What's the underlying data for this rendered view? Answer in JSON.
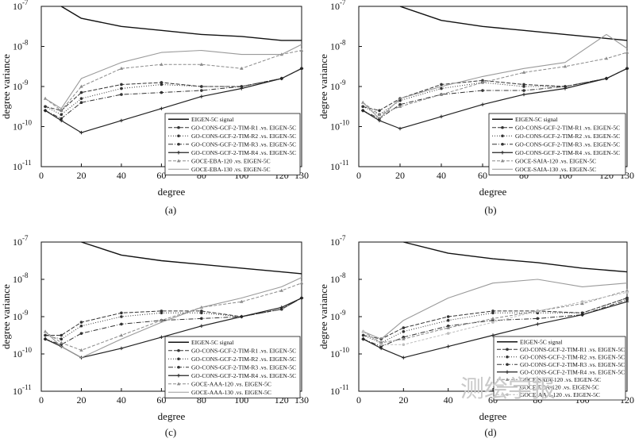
{
  "chart_data": [
    {
      "type": "line",
      "panel": "(a)",
      "xlabel": "degree",
      "ylabel": "degree variance",
      "xlim": [
        0,
        130
      ],
      "ylim_log10": [
        -11,
        -7
      ],
      "x_ticks": [
        "0",
        "20",
        "40",
        "60",
        "80",
        "100",
        "120",
        "130"
      ],
      "y_ticks": [
        "10^-11",
        "10^-10",
        "10^-9",
        "10^-8",
        "10^-7"
      ],
      "legend": [
        "EIGEN-5C signal",
        "GO-CONS-GCF-2-TIM-R1 .vs. EIGEN-5C",
        "GO-CONS-GCF-2-TIM-R2 .vs. EIGEN-5C",
        "GO-CONS-GCF-2-TIM-R3 .vs. EIGEN-5C",
        "GO-CONS-GCF-2-TIM-R4 .vs. EIGEN-5C",
        "GOCE-EBA-120 .vs. EIGEN-5C",
        "GOCE-EBA-130 .vs. EIGEN-5C"
      ],
      "series": [
        {
          "name": "EIGEN-5C signal",
          "x": [
            10,
            20,
            40,
            60,
            80,
            100,
            120,
            130
          ],
          "log10_y": [
            -7,
            -7.3,
            -7.5,
            -7.6,
            -7.7,
            -7.75,
            -7.85,
            -7.85
          ]
        },
        {
          "name": "GO-CONS-GCF-2-TIM-R1 .vs. EIGEN-5C",
          "x": [
            2,
            10,
            20,
            40,
            60,
            80,
            100,
            120,
            130
          ],
          "log10_y": [
            -9.5,
            -9.6,
            -9.15,
            -8.95,
            -8.9,
            -9.0,
            -9.0,
            -8.8,
            -8.55
          ]
        },
        {
          "name": "GO-CONS-GCF-2-TIM-R2 .vs. EIGEN-5C",
          "x": [
            2,
            10,
            20,
            40,
            60,
            80,
            100,
            120,
            130
          ],
          "log10_y": [
            -9.5,
            -9.7,
            -9.3,
            -9.05,
            -8.95,
            -9.0,
            -9.0,
            -8.8,
            -8.55
          ]
        },
        {
          "name": "GO-CONS-GCF-2-TIM-R3 .vs. EIGEN-5C",
          "x": [
            2,
            10,
            20,
            40,
            60,
            80,
            100,
            120,
            130
          ],
          "log10_y": [
            -9.6,
            -9.8,
            -9.4,
            -9.2,
            -9.15,
            -9.1,
            -9.0,
            -8.8,
            -8.55
          ]
        },
        {
          "name": "GO-CONS-GCF-2-TIM-R4 .vs. EIGEN-5C",
          "x": [
            2,
            10,
            20,
            40,
            60,
            80,
            100,
            120,
            130
          ],
          "log10_y": [
            -9.6,
            -9.85,
            -10.15,
            -9.85,
            -9.55,
            -9.25,
            -9.05,
            -8.8,
            -8.55
          ]
        },
        {
          "name": "GOCE-EBA-120 .vs. EIGEN-5C",
          "x": [
            2,
            10,
            20,
            40,
            60,
            80,
            100,
            120,
            130
          ],
          "log10_y": [
            -9.3,
            -9.6,
            -9.0,
            -8.55,
            -8.45,
            -8.45,
            -8.55,
            -8.2,
            -8.1
          ]
        },
        {
          "name": "GOCE-EBA-130 .vs. EIGEN-5C",
          "x": [
            2,
            10,
            20,
            40,
            60,
            80,
            100,
            120,
            130
          ],
          "log10_y": [
            -9.3,
            -9.55,
            -8.8,
            -8.4,
            -8.15,
            -8.1,
            -8.2,
            -8.2,
            -7.95
          ]
        }
      ]
    },
    {
      "type": "line",
      "panel": "(b)",
      "xlabel": "degree",
      "ylabel": "degree variance",
      "xlim": [
        0,
        130
      ],
      "ylim_log10": [
        -11,
        -7
      ],
      "x_ticks": [
        "0",
        "20",
        "40",
        "60",
        "80",
        "100",
        "120",
        "130"
      ],
      "y_ticks": [
        "10^-11",
        "10^-10",
        "10^-9",
        "10^-8",
        "10^-7"
      ],
      "legend": [
        "EIGEN-5C signal",
        "GO-CONS-GCF-2-TIM-R1 .vs. EIGEN-5C",
        "GO-CONS-GCF-2-TIM-R2 .vs. EIGEN-5C",
        "GO-CONS-GCF-2-TIM-R3 .vs. EIGEN-5C",
        "GO-CONS-GCF-2-TIM-R4 .vs. EIGEN-5C",
        "GOCE-SAIA-120 .vs. EIGEN-5C",
        "GOCE-SAIA-130 .vs. EIGEN-5C"
      ],
      "series": [
        {
          "name": "EIGEN-5C signal",
          "x": [
            20,
            40,
            60,
            80,
            100,
            120,
            130
          ],
          "log10_y": [
            -7,
            -7.35,
            -7.5,
            -7.6,
            -7.7,
            -7.8,
            -7.85
          ]
        },
        {
          "name": "GO-CONS-GCF-2-TIM-R1 .vs. EIGEN-5C",
          "x": [
            2,
            10,
            20,
            40,
            60,
            80,
            100,
            120,
            130
          ],
          "log10_y": [
            -9.5,
            -9.6,
            -9.3,
            -8.95,
            -8.85,
            -8.95,
            -9.0,
            -8.8,
            -8.55
          ]
        },
        {
          "name": "GO-CONS-GCF-2-TIM-R2 .vs. EIGEN-5C",
          "x": [
            2,
            10,
            20,
            40,
            60,
            80,
            100,
            120,
            130
          ],
          "log10_y": [
            -9.5,
            -9.7,
            -9.35,
            -9.05,
            -8.9,
            -9.0,
            -9.0,
            -8.8,
            -8.55
          ]
        },
        {
          "name": "GO-CONS-GCF-2-TIM-R3 .vs. EIGEN-5C",
          "x": [
            2,
            10,
            20,
            40,
            60,
            80,
            100,
            120,
            130
          ],
          "log10_y": [
            -9.6,
            -9.8,
            -9.45,
            -9.2,
            -9.1,
            -9.1,
            -9.0,
            -8.8,
            -8.55
          ]
        },
        {
          "name": "GO-CONS-GCF-2-TIM-R4 .vs. EIGEN-5C",
          "x": [
            2,
            10,
            20,
            40,
            60,
            80,
            100,
            120,
            130
          ],
          "log10_y": [
            -9.6,
            -9.85,
            -10.05,
            -9.75,
            -9.45,
            -9.2,
            -9.05,
            -8.8,
            -8.55
          ]
        },
        {
          "name": "GOCE-SAIA-120 .vs. EIGEN-5C",
          "x": [
            2,
            10,
            20,
            40,
            60,
            80,
            100,
            120,
            130
          ],
          "log10_y": [
            -9.4,
            -9.7,
            -9.5,
            -9.2,
            -8.9,
            -8.65,
            -8.5,
            -8.3,
            -8.15
          ]
        },
        {
          "name": "GOCE-SAIA-130 .vs. EIGEN-5C",
          "x": [
            2,
            10,
            20,
            40,
            60,
            80,
            100,
            120,
            130
          ],
          "log10_y": [
            -9.4,
            -9.8,
            -9.3,
            -9.0,
            -8.75,
            -8.55,
            -8.4,
            -7.7,
            -8.05
          ]
        }
      ]
    },
    {
      "type": "line",
      "panel": "(c)",
      "xlabel": "degree",
      "ylabel": "degree variance",
      "xlim": [
        0,
        130
      ],
      "ylim_log10": [
        -11,
        -7
      ],
      "x_ticks": [
        "0",
        "20",
        "40",
        "60",
        "80",
        "100",
        "120",
        "130"
      ],
      "y_ticks": [
        "10^-11",
        "10^-10",
        "10^-9",
        "10^-8",
        "10^-7"
      ],
      "legend": [
        "EIGEN-5C signal",
        "GO-CONS-GCF-2-TIM-R1 .vs. EIGEN-5C",
        "GO-CONS-GCF-2-TIM-R2 .vs. EIGEN-5C",
        "GO-CONS-GCF-2-TIM-R3 .vs. EIGEN-5C",
        "GO-CONS-GCF-2-TIM-R4 .vs. EIGEN-5C",
        "GOCE-AAA-120 .vs. EIGEN-5C",
        "GOCE-AAA-130 .vs. EIGEN-5C"
      ],
      "series": [
        {
          "name": "EIGEN-5C signal",
          "x": [
            20,
            40,
            60,
            80,
            100,
            120,
            130
          ],
          "log10_y": [
            -7,
            -7.35,
            -7.5,
            -7.6,
            -7.7,
            -7.8,
            -7.85
          ]
        },
        {
          "name": "GO-CONS-GCF-2-TIM-R1 .vs. EIGEN-5C",
          "x": [
            2,
            10,
            20,
            40,
            60,
            80,
            100,
            120,
            130
          ],
          "log10_y": [
            -9.5,
            -9.5,
            -9.15,
            -8.9,
            -8.85,
            -8.85,
            -9.0,
            -8.8,
            -8.5
          ]
        },
        {
          "name": "GO-CONS-GCF-2-TIM-R2 .vs. EIGEN-5C",
          "x": [
            2,
            10,
            20,
            40,
            60,
            80,
            100,
            120,
            130
          ],
          "log10_y": [
            -9.5,
            -9.6,
            -9.25,
            -9.0,
            -8.9,
            -8.9,
            -9.0,
            -8.8,
            -8.5
          ]
        },
        {
          "name": "GO-CONS-GCF-2-TIM-R3 .vs. EIGEN-5C",
          "x": [
            2,
            10,
            20,
            40,
            60,
            80,
            100,
            120,
            130
          ],
          "log10_y": [
            -9.6,
            -9.75,
            -9.45,
            -9.2,
            -9.1,
            -9.05,
            -9.0,
            -8.8,
            -8.5
          ]
        },
        {
          "name": "GO-CONS-GCF-2-TIM-R4 .vs. EIGEN-5C",
          "x": [
            2,
            10,
            20,
            40,
            60,
            80,
            100,
            120,
            130
          ],
          "log10_y": [
            -9.6,
            -9.8,
            -10.1,
            -9.85,
            -9.55,
            -9.25,
            -9.0,
            -8.75,
            -8.5
          ]
        },
        {
          "name": "GOCE-AAA-120 .vs. EIGEN-5C",
          "x": [
            2,
            10,
            20,
            40,
            60,
            80,
            100,
            120,
            130
          ],
          "log10_y": [
            -9.4,
            -9.7,
            -9.9,
            -9.5,
            -9.1,
            -8.75,
            -8.6,
            -8.3,
            -8.1
          ]
        },
        {
          "name": "GOCE-AAA-130 .vs. EIGEN-5C",
          "x": [
            2,
            10,
            20,
            40,
            60,
            80,
            100,
            120,
            130
          ],
          "log10_y": [
            -9.4,
            -9.8,
            -10.1,
            -9.6,
            -9.15,
            -8.75,
            -8.5,
            -8.2,
            -7.95
          ]
        }
      ]
    },
    {
      "type": "line",
      "panel": "(d)",
      "xlabel": "degree",
      "ylabel": "degree variance",
      "xlim": [
        0,
        120
      ],
      "ylim_log10": [
        -11,
        -7
      ],
      "x_ticks": [
        "0",
        "20",
        "40",
        "60",
        "80",
        "100",
        "120"
      ],
      "y_ticks": [
        "10^-11",
        "10^-10",
        "10^-9",
        "10^-8",
        "10^-7"
      ],
      "legend": [
        "EIGEN-5C signal",
        "GO-CONS-GCF-2-TIM-R1 .vs. EIGEN-5C",
        "GO-CONS-GCF-2-TIM-R2 .vs. EIGEN-5C",
        "GO-CONS-GCF-2-TIM-R3 .vs. EIGEN-5C",
        "GO-CONS-GCF-2-TIM-R4 .vs. EIGEN-5C",
        "GOCE-SAIA-120 .vs. EIGEN-5C",
        "GOCE-EBA-120 .vs. EIGEN-5C",
        "GOCE-AAA-120 .vs. EIGEN-5C"
      ],
      "series": [
        {
          "name": "EIGEN-5C signal",
          "x": [
            20,
            40,
            60,
            80,
            100,
            120
          ],
          "log10_y": [
            -7,
            -7.3,
            -7.45,
            -7.55,
            -7.7,
            -7.8
          ]
        },
        {
          "name": "GO-CONS-GCF-2-TIM-R1 .vs. EIGEN-5C",
          "x": [
            2,
            10,
            20,
            40,
            60,
            80,
            100,
            120
          ],
          "log10_y": [
            -9.5,
            -9.6,
            -9.3,
            -9.0,
            -8.85,
            -8.85,
            -8.9,
            -8.5
          ]
        },
        {
          "name": "GO-CONS-GCF-2-TIM-R2 .vs. EIGEN-5C",
          "x": [
            2,
            10,
            20,
            40,
            60,
            80,
            100,
            120
          ],
          "log10_y": [
            -9.5,
            -9.7,
            -9.4,
            -9.1,
            -8.9,
            -8.9,
            -8.9,
            -8.5
          ]
        },
        {
          "name": "GO-CONS-GCF-2-TIM-R3 .vs. EIGEN-5C",
          "x": [
            2,
            10,
            20,
            40,
            60,
            80,
            100,
            120
          ],
          "log10_y": [
            -9.6,
            -9.8,
            -9.55,
            -9.25,
            -9.1,
            -9.05,
            -8.95,
            -8.55
          ]
        },
        {
          "name": "GO-CONS-GCF-2-TIM-R4 .vs. EIGEN-5C",
          "x": [
            2,
            10,
            20,
            40,
            60,
            80,
            100,
            120
          ],
          "log10_y": [
            -9.6,
            -9.85,
            -10.1,
            -9.8,
            -9.5,
            -9.2,
            -8.95,
            -8.6
          ]
        },
        {
          "name": "GOCE-SAIA-120 .vs. EIGEN-5C",
          "x": [
            2,
            10,
            20,
            40,
            60,
            80,
            100,
            120
          ],
          "log10_y": [
            -9.4,
            -9.7,
            -9.6,
            -9.3,
            -9.05,
            -8.85,
            -8.65,
            -8.3
          ]
        },
        {
          "name": "GOCE-EBA-120 .vs. EIGEN-5C",
          "x": [
            2,
            10,
            20,
            40,
            60,
            80,
            100,
            120
          ],
          "log10_y": [
            -9.4,
            -9.6,
            -9.1,
            -8.5,
            -8.1,
            -8.0,
            -8.2,
            -8.1
          ]
        },
        {
          "name": "GOCE-AAA-120 .vs. EIGEN-5C",
          "x": [
            2,
            10,
            20,
            40,
            60,
            80,
            100,
            120
          ],
          "log10_y": [
            -9.4,
            -9.75,
            -9.75,
            -9.45,
            -9.15,
            -8.85,
            -8.6,
            -8.35
          ]
        }
      ]
    }
  ],
  "watermark": "测绘学报"
}
